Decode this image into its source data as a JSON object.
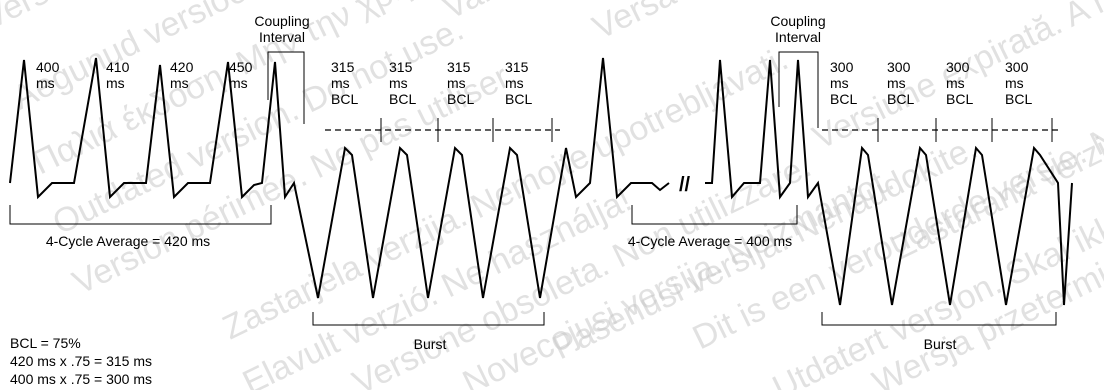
{
  "watermark": [
    "Version obsolète. Ne pas utiliser.",
    "Aegunud versioon. Ärge kasutage.",
    "Παλιά έκδοση. Μην την χρησιμοποιείτε.",
    "Outdated version. Do not use.",
    "Version périmée. Ne pas utiliser.",
    "Zastarjela verzija. Nemojte upotrebljavati.",
    "Elavult verzió. Ne használja!",
    "Versione obsoleta. Non utilizzare.",
    "Novecojusi versija. Neizmantot.",
    "Pasenusi versija. Nenaudokite.",
    "Dit is een verouderde versie. Niet gebruiken.",
    "Utdatert versjon. Skal ikke brukes.",
    "Wersja przeterminowana. Nie używać.",
    "Versão obsoleta. Não utilize.",
    "Versiune expirată. A nu se utiliza.",
    "Zastaraná verzia. Nepoužívať.",
    "Vanhentunut versio. Älä käytä."
  ],
  "left": {
    "cycles": [
      "400\nms",
      "410\nms",
      "420\nms",
      "450\nms"
    ],
    "coupling": "Coupling\nInterval",
    "bcl": [
      "315\nms\nBCL",
      "315\nms\nBCL",
      "315\nms\nBCL",
      "315\nms\nBCL"
    ],
    "average": "4-Cycle Average = 420 ms",
    "burst": "Burst"
  },
  "right": {
    "coupling": "Coupling\nInterval",
    "bcl": [
      "300\nms\nBCL",
      "300\nms\nBCL",
      "300\nms\nBCL",
      "300\nms\nBCL"
    ],
    "average": "4-Cycle Average = 400 ms",
    "burst": "Burst"
  },
  "break_mark": "//",
  "formula": [
    "BCL = 75%",
    "420 ms x .75 = 315 ms",
    "400 ms x .75 = 300 ms"
  ]
}
